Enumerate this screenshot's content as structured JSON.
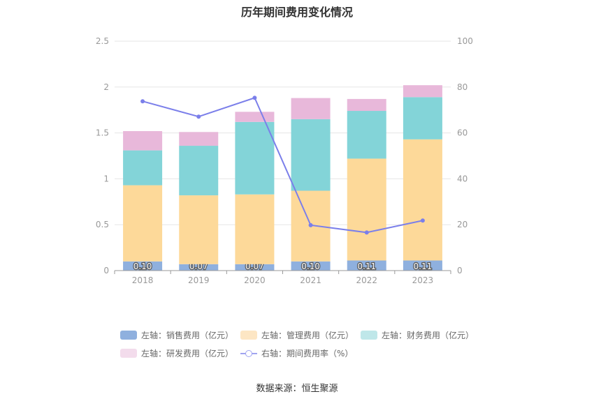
{
  "chart_data": {
    "type": "bar",
    "title": "历年期间费用变化情况",
    "categories": [
      "2018",
      "2019",
      "2020",
      "2021",
      "2022",
      "2023"
    ],
    "left_axis": {
      "ylim": [
        0,
        2.5
      ],
      "ticks": [
        "0",
        "0.5",
        "1",
        "1.5",
        "2",
        "2.5"
      ]
    },
    "right_axis": {
      "ylim": [
        0,
        100
      ],
      "ticks": [
        "0",
        "20",
        "40",
        "60",
        "80",
        "100"
      ]
    },
    "stacked_series": [
      {
        "name": "左轴：销售费用（亿元）",
        "color": "#8fb0de",
        "values": [
          0.1,
          0.07,
          0.07,
          0.1,
          0.11,
          0.11
        ],
        "labels": [
          "0.10",
          "0.07",
          "0.07",
          "0.10",
          "0.11",
          "0.11"
        ]
      },
      {
        "name": "左轴：管理费用（亿元）",
        "color": "#fdd999",
        "legend_color": "#fde6c4",
        "values": [
          0.83,
          0.75,
          0.76,
          0.77,
          1.11,
          1.32
        ]
      },
      {
        "name": "左轴：财务费用（亿元）",
        "color": "#83d4d8",
        "legend_color": "#bfe7e9",
        "values": [
          0.38,
          0.54,
          0.79,
          0.78,
          0.52,
          0.46
        ]
      },
      {
        "name": "左轴：研发费用（亿元）",
        "color": "#e8b8da",
        "legend_color": "#f3dcec",
        "values": [
          0.21,
          0.15,
          0.11,
          0.23,
          0.13,
          0.13
        ]
      }
    ],
    "line_series": {
      "name": "右轴：期间费用率（%）",
      "color": "#7b7fea",
      "values": [
        73.8,
        67.1,
        75.3,
        19.8,
        16.6,
        21.8
      ]
    },
    "grid": true,
    "legend_position": "bottom"
  },
  "source": "数据来源：恒生聚源"
}
